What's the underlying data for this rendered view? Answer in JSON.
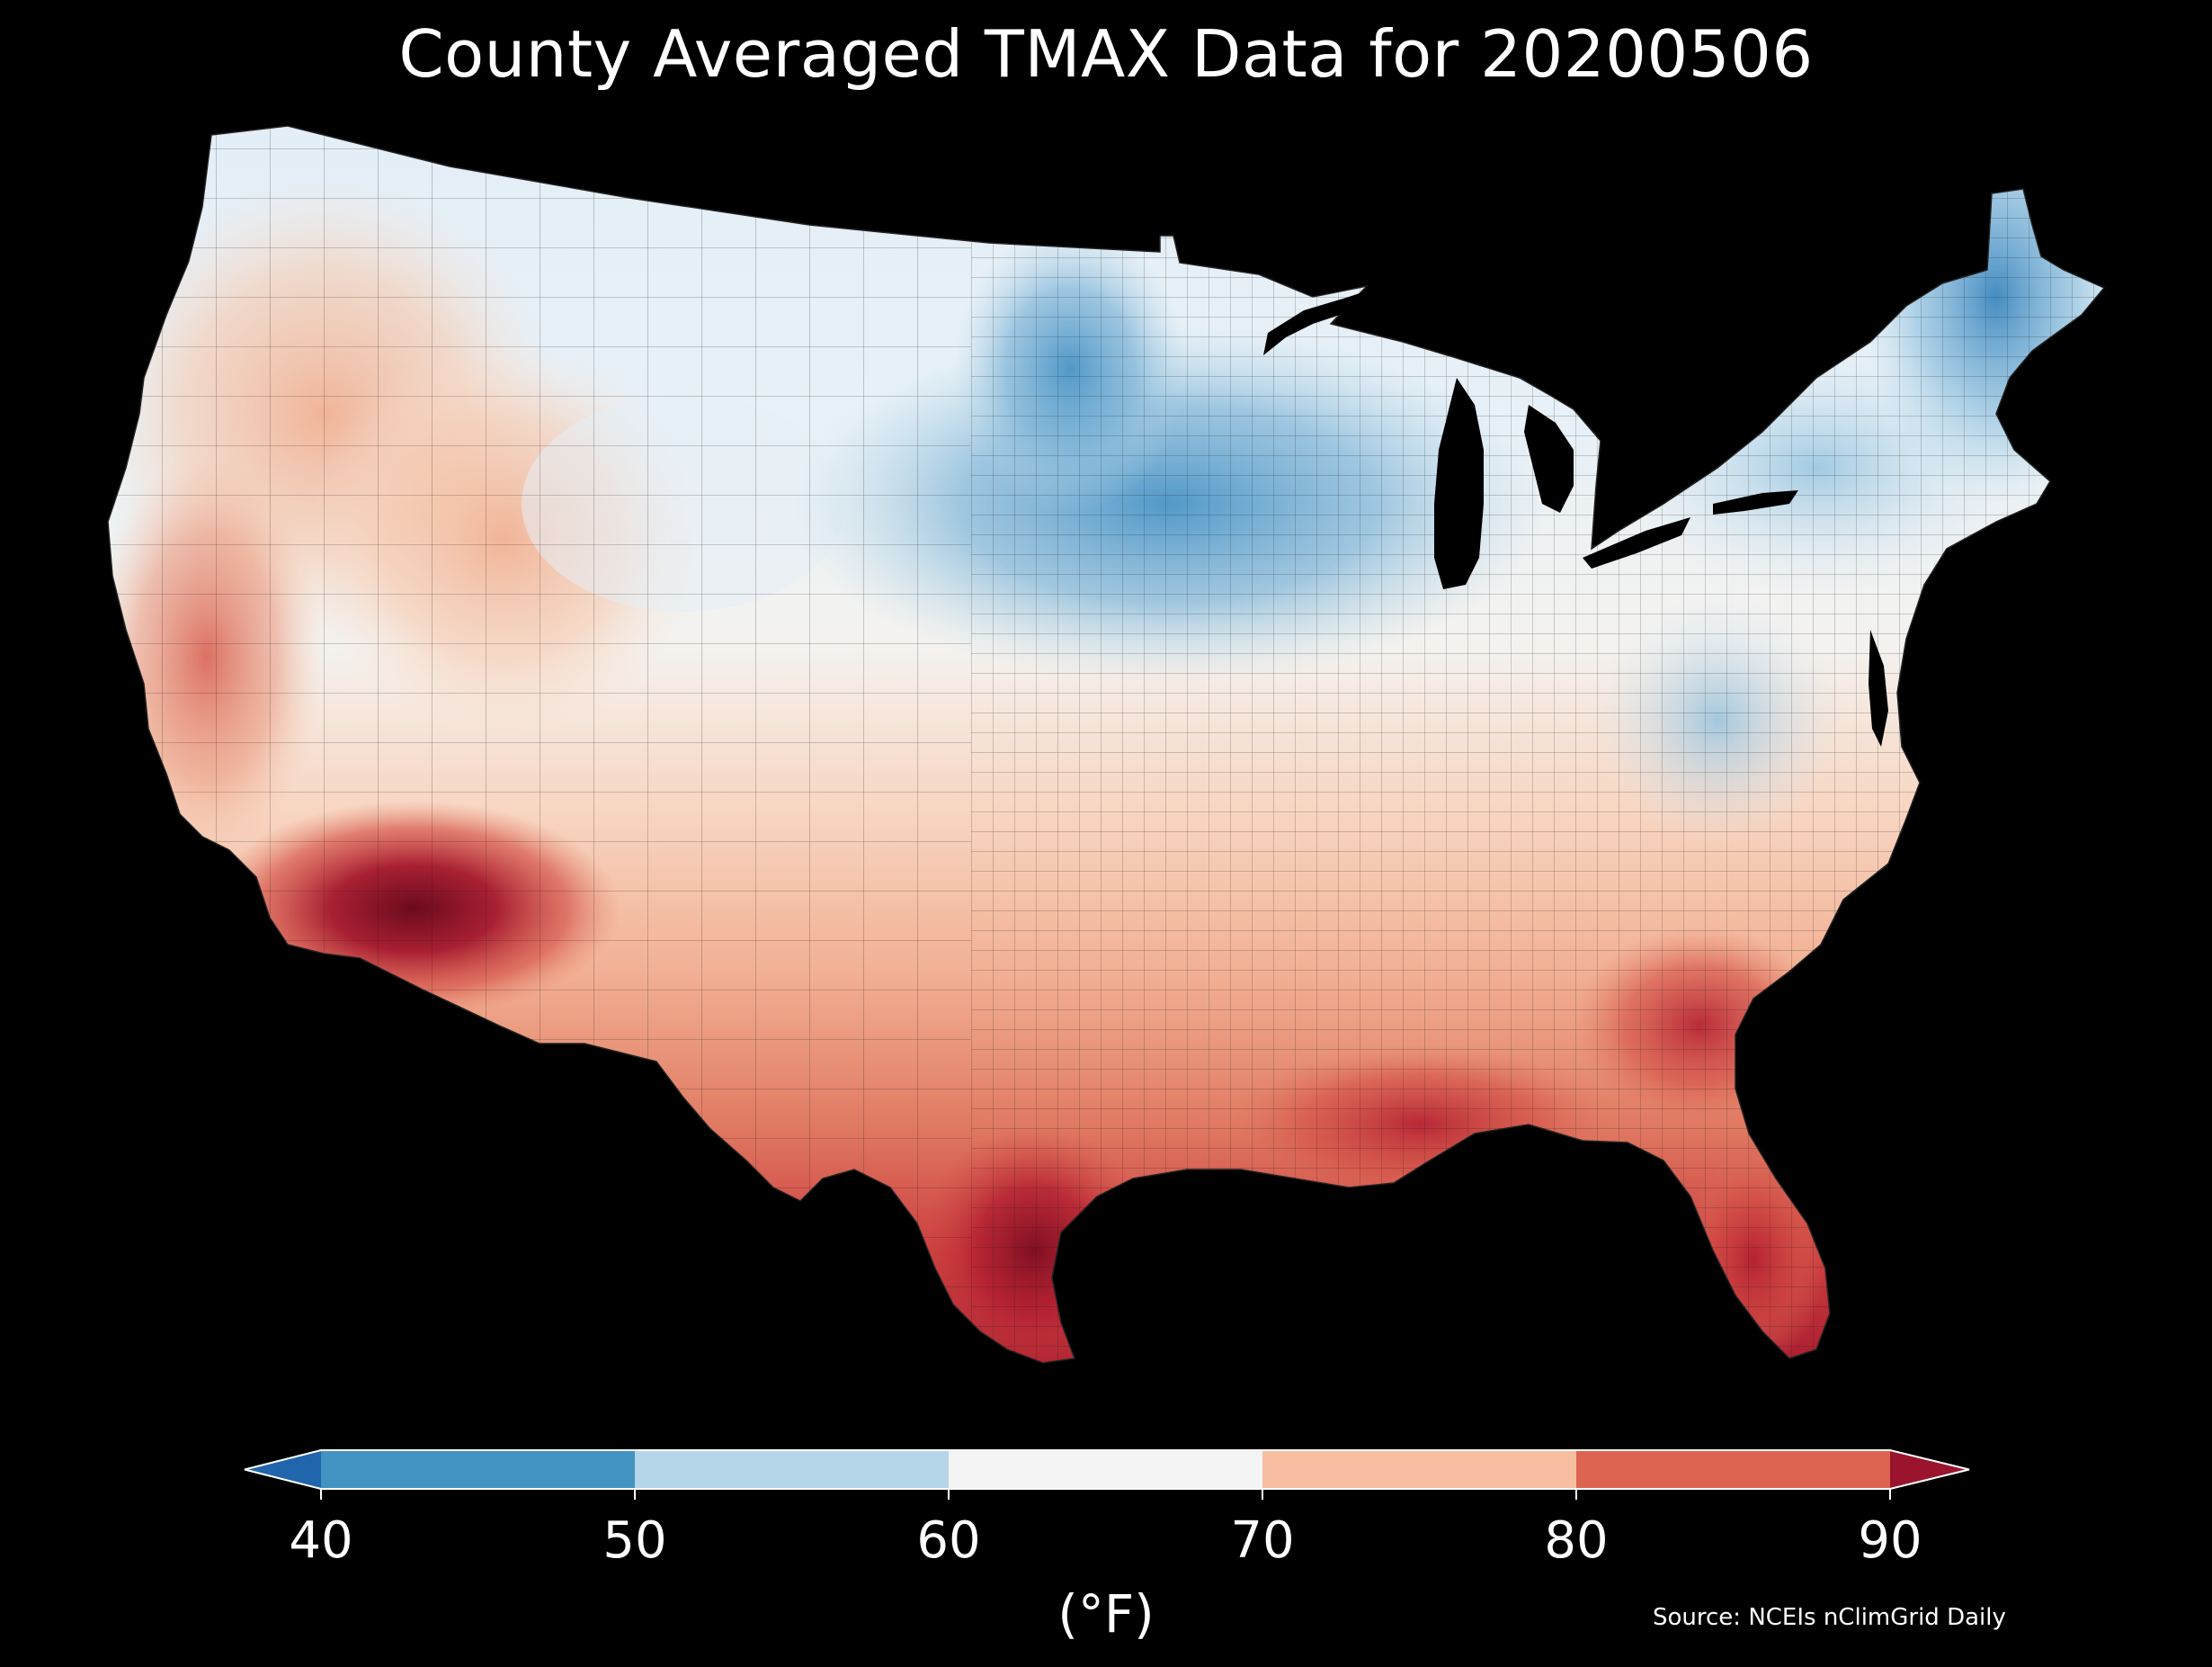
{
  "title": "County Averaged TMAX Data for 20200506",
  "legend": {
    "unit": "(°F)",
    "ticks": [
      "40",
      "50",
      "60",
      "70",
      "80",
      "90"
    ],
    "extend": "both",
    "bins": [
      {
        "range": "<40",
        "color": "#2166ac"
      },
      {
        "range": "40-50",
        "color": "#4393c3"
      },
      {
        "range": "50-60",
        "color": "#b4d6e8"
      },
      {
        "range": "60-70",
        "color": "#f4f4f4"
      },
      {
        "range": "70-80",
        "color": "#f7bea1"
      },
      {
        "range": "80-90",
        "color": "#dd6450"
      },
      {
        "range": ">90",
        "color": "#99142c"
      }
    ]
  },
  "source": "Source: NCEIs nClimGrid Daily",
  "colors": {
    "background": "#000000",
    "text": "#ffffff",
    "county_border": "#1a1a1a"
  }
}
